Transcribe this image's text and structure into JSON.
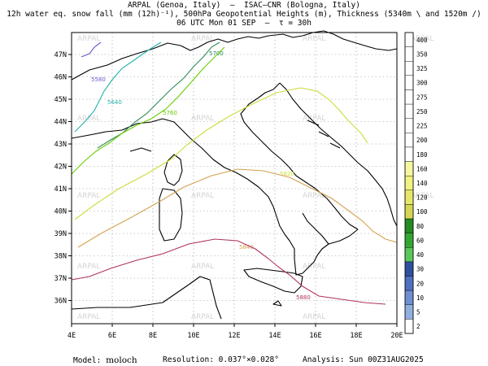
{
  "header": {
    "line1": "ARPAL (Genoa, Italy)  –  ISAC–CNR (Bologna, Italy)",
    "line2": "12h water eq. snow fall (mm (12h)⁻¹), 500hPa Geopotential Heights (m), Thickness (5340m \\ and 1520m /)",
    "line3": "06 UTC Mon 01 SEP  –  τ = 30h"
  },
  "map": {
    "lon_labels": [
      "4E",
      "6E",
      "8E",
      "10E",
      "12E",
      "14E",
      "16E",
      "18E",
      "20E"
    ],
    "lat_labels": [
      "47N",
      "46N",
      "45N",
      "44N",
      "43N",
      "42N",
      "41N",
      "40N",
      "39N",
      "38N",
      "37N",
      "36N"
    ],
    "watermark": "ARPAL",
    "contours": [
      {
        "label": "5580",
        "color": "#6a5acd"
      },
      {
        "label": "5640",
        "color": "#20b2aa"
      },
      {
        "label": "5700",
        "color": "#2e8b57"
      },
      {
        "label": "5760",
        "color": "#66cd00"
      },
      {
        "label": "5820",
        "color": "#cddc39"
      },
      {
        "label": "5840",
        "color": "#d2a24c"
      },
      {
        "label": "5880",
        "color": "#b03060"
      }
    ]
  },
  "colorbar": {
    "labels": [
      "400",
      "350",
      "325",
      "300",
      "275",
      "250",
      "225",
      "200",
      "180",
      "160",
      "140",
      "120",
      "100",
      "80",
      "60",
      "40",
      "30",
      "20",
      "10",
      "5",
      "2"
    ],
    "colors": [
      "#ffffff",
      "#ffffff",
      "#ffffff",
      "#ffffff",
      "#ffffff",
      "#ffffff",
      "#ffffff",
      "#ffffff",
      "#ffffff",
      "#f7f7a0",
      "#f2f280",
      "#e6e66a",
      "#d6d655",
      "#228b22",
      "#32a832",
      "#5ac85a",
      "#2f4f9f",
      "#4f6fc0",
      "#6f8fd0",
      "#90b0e0",
      "#ffffff"
    ]
  },
  "footer": {
    "model_label": "Model:",
    "model_value": "moloch",
    "resolution": "Resolution: 0.037°×0.028°",
    "analysis": "Analysis: Sun 00Z31AUG2025"
  }
}
